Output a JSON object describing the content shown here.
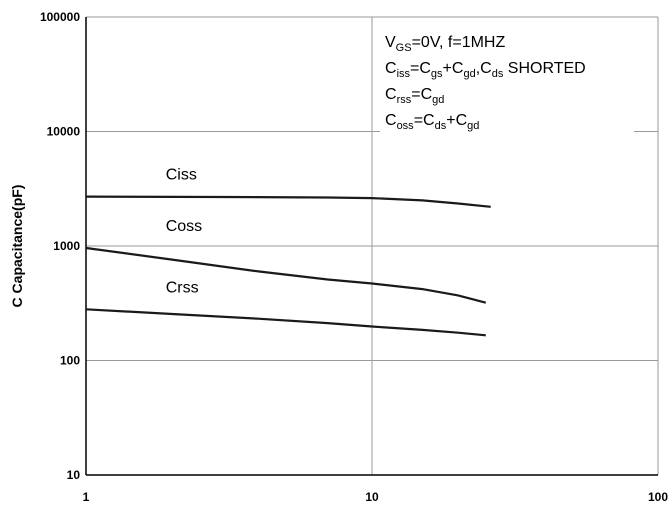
{
  "chart_data": {
    "type": "line",
    "xscale": "log",
    "yscale": "log",
    "xlim": [
      1,
      100
    ],
    "ylim": [
      10,
      100000
    ],
    "x_ticks": [
      "1",
      "10",
      "100"
    ],
    "y_ticks": [
      "10",
      "100",
      "1000",
      "10000",
      "100000"
    ],
    "ylabel": "C Capacitance(pF)",
    "xlabel": "",
    "grid": true,
    "legend": "none",
    "line_color": "#1a1a1a",
    "series": [
      {
        "name": "Ciss",
        "x": [
          1,
          3,
          7,
          10,
          15,
          20,
          26
        ],
        "y": [
          2700,
          2680,
          2650,
          2620,
          2500,
          2350,
          2200
        ]
      },
      {
        "name": "Coss",
        "x": [
          1,
          2,
          4,
          7,
          10,
          15,
          20,
          25
        ],
        "y": [
          960,
          760,
          600,
          510,
          470,
          420,
          370,
          320
        ]
      },
      {
        "name": "Crss",
        "x": [
          1,
          2,
          4,
          7,
          10,
          15,
          20,
          25
        ],
        "y": [
          280,
          255,
          232,
          212,
          198,
          185,
          175,
          166
        ]
      }
    ],
    "annotations": [
      {
        "base": "V",
        "sub": "GS",
        "rest": "=0V, f=1MHZ"
      },
      {
        "parts": [
          [
            "C",
            false
          ],
          [
            "iss",
            true
          ],
          [
            "=C",
            false
          ],
          [
            "gs",
            true
          ],
          [
            "+C",
            false
          ],
          [
            "gd",
            true
          ],
          [
            ",C",
            false
          ],
          [
            "ds",
            true
          ],
          [
            " SHORTED",
            false
          ]
        ]
      },
      {
        "parts": [
          [
            "C",
            false
          ],
          [
            "rss",
            true
          ],
          [
            "=C",
            false
          ],
          [
            "gd",
            true
          ]
        ]
      },
      {
        "parts": [
          [
            "C",
            false
          ],
          [
            "oss",
            true
          ],
          [
            "=C",
            false
          ],
          [
            "ds",
            true
          ],
          [
            "+C",
            false
          ],
          [
            "gd",
            true
          ]
        ]
      }
    ]
  }
}
